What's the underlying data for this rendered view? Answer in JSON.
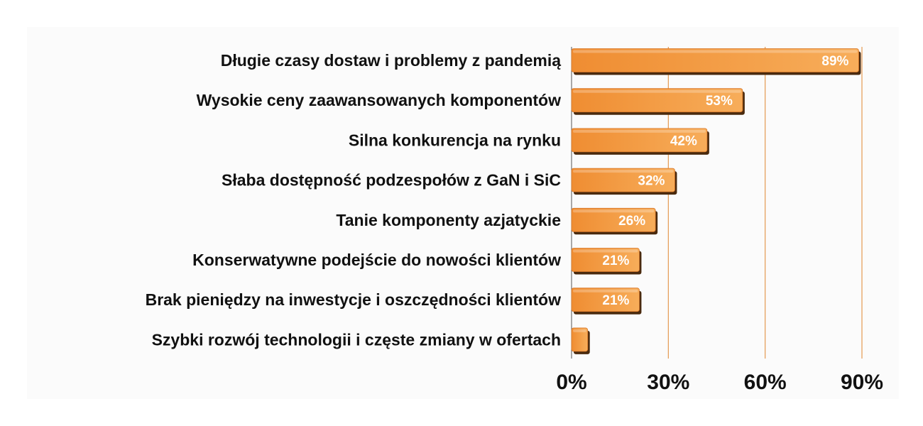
{
  "chart_data": {
    "type": "bar",
    "orientation": "horizontal",
    "categories": [
      "Długie czasy dostaw i problemy z pandemią",
      "Wysokie ceny zaawansowanych komponentów",
      "Silna konkurencja na rynku",
      "Słaba dostępność podzespołów z GaN i SiC",
      "Tanie komponenty azjatyckie",
      "Konserwatywne podejście do nowości klientów",
      "Brak pieniędzy na inwestycje i oszczędności klientów",
      "Szybki rozwój technologii i częste zmiany w ofertach"
    ],
    "values": [
      89,
      53,
      42,
      32,
      26,
      21,
      21,
      5
    ],
    "value_labels": [
      "89%",
      "53%",
      "42%",
      "32%",
      "26%",
      "21%",
      "21%",
      ""
    ],
    "xlim": [
      0,
      90
    ],
    "xticks": [
      0,
      30,
      60,
      90
    ],
    "xtick_labels": [
      "0%",
      "30%",
      "60%",
      "90%"
    ],
    "grid": true,
    "legend": "none",
    "colors": {
      "bar_light": "#f7ad5a",
      "bar_dark": "#ef8d32",
      "bar_shadow": "#4a2a0e",
      "gridline": "#e59a50"
    }
  }
}
